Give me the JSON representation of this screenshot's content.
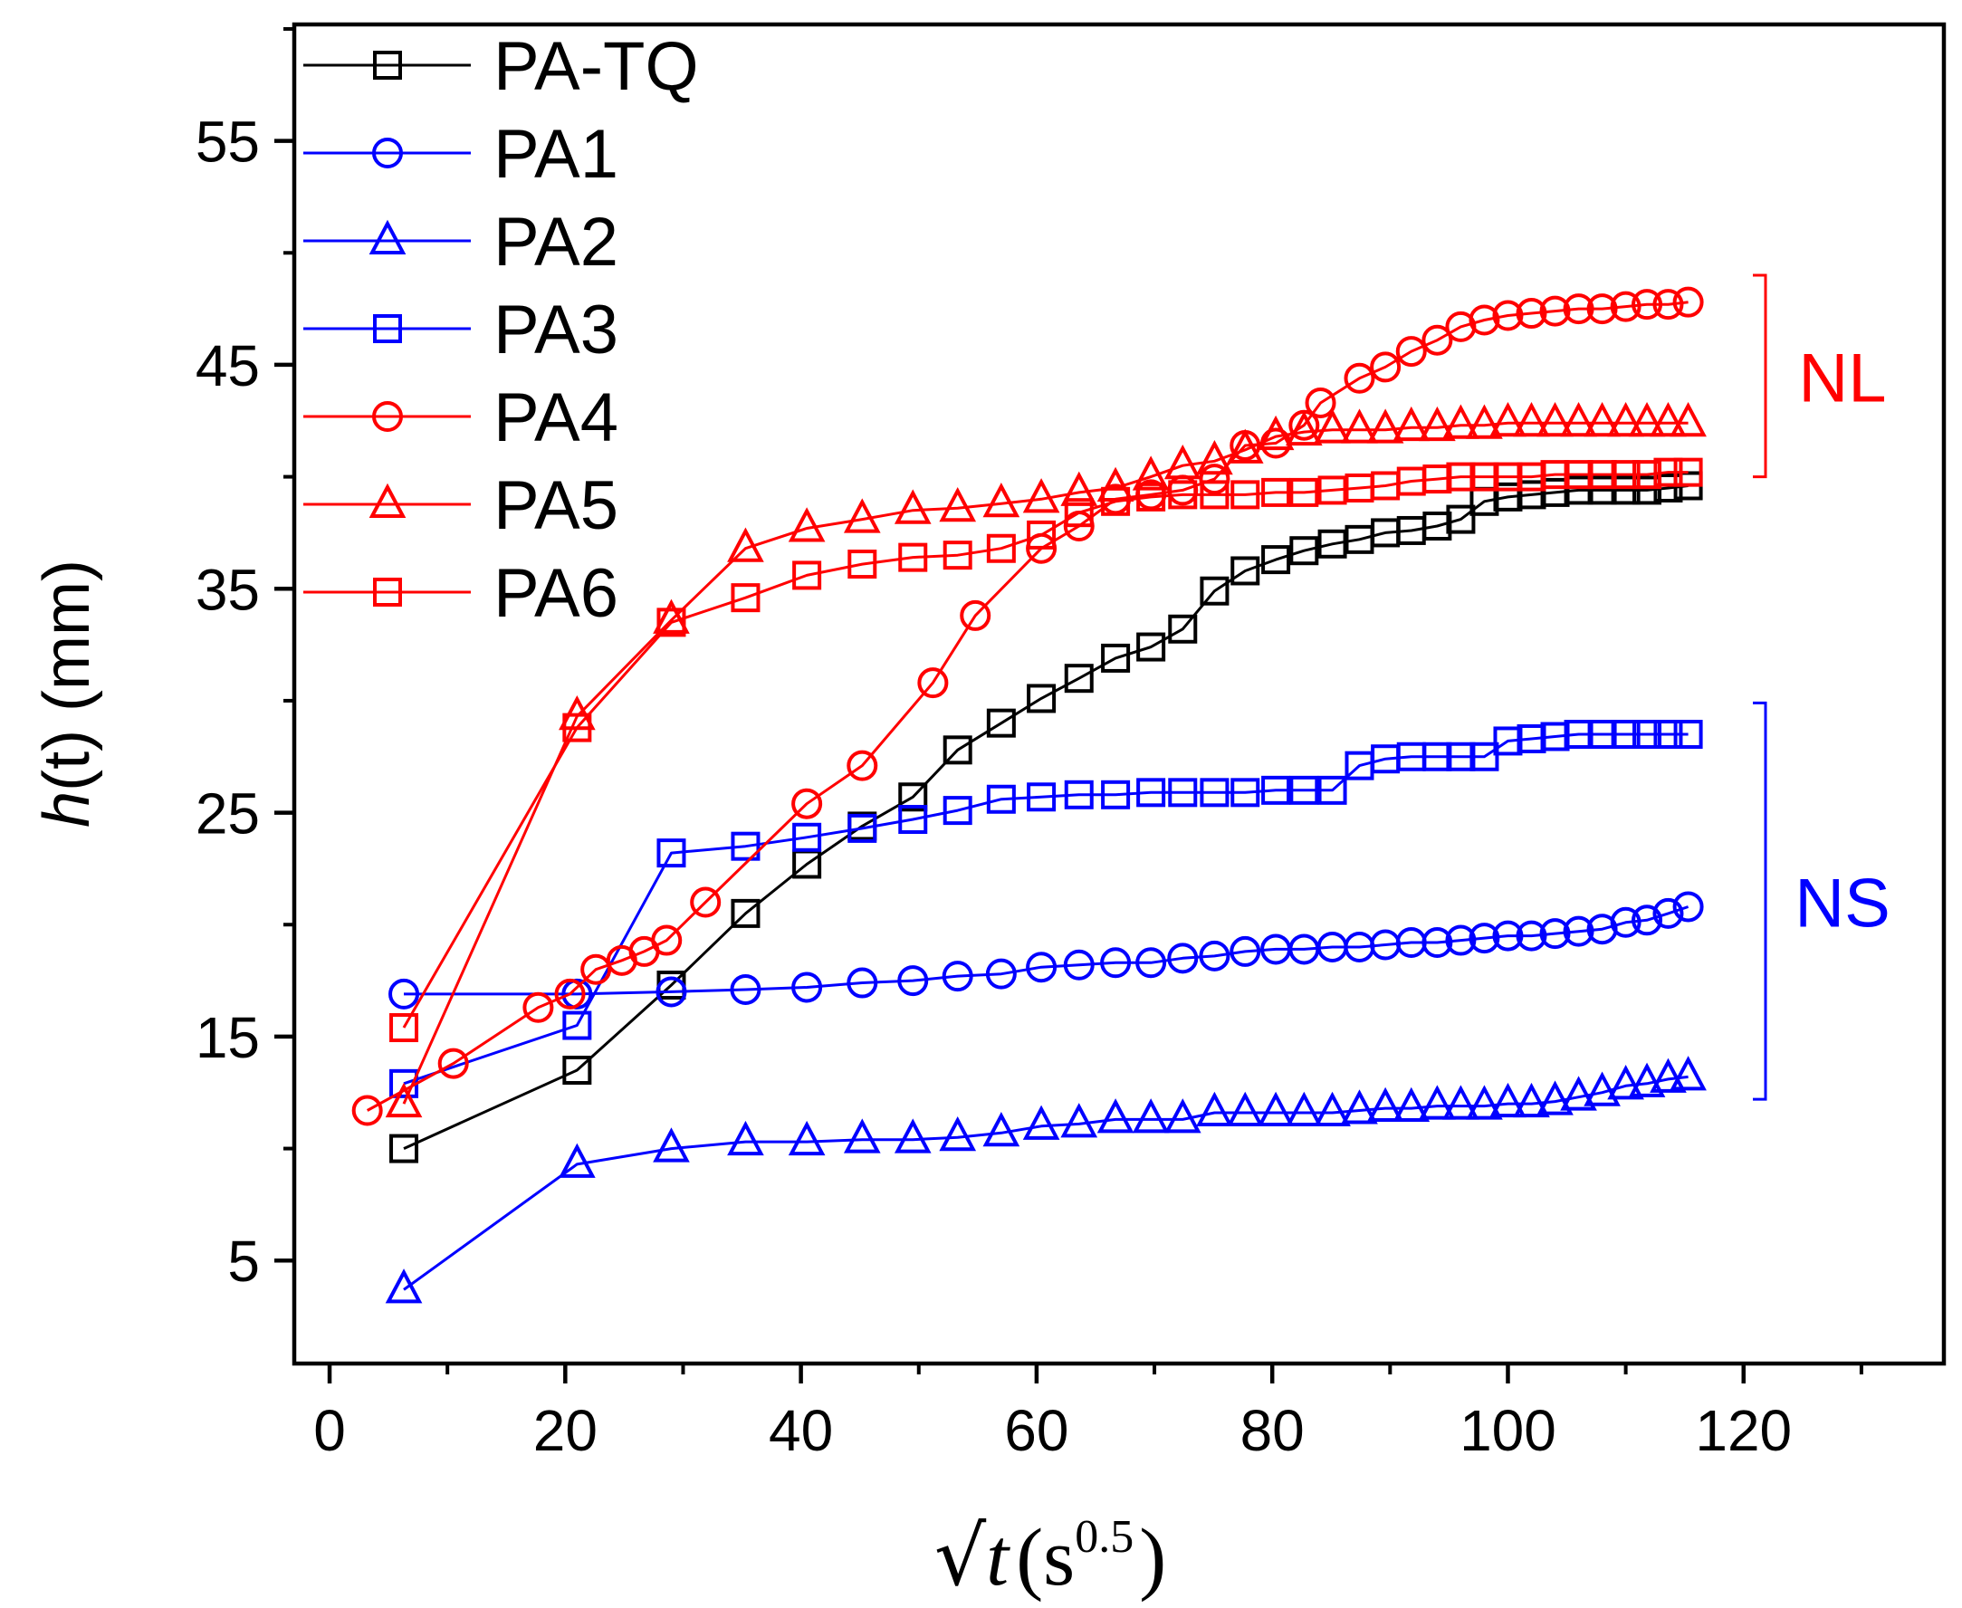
{
  "chart_data": {
    "type": "line",
    "title": "",
    "xlabel": "√t (s^0.5)",
    "xlabel_parts": {
      "sqrt": "√",
      "var": "t",
      "open": "(s",
      "sup": "0.5",
      "close": ")"
    },
    "ylabel": "h(t) (mm)",
    "ylabel_parts": {
      "var": "h",
      "rest": "(t) (mm)"
    },
    "xlim": [
      -3,
      137
    ],
    "ylim": [
      0.4,
      60.2
    ],
    "xticks": [
      0,
      20,
      40,
      60,
      80,
      100,
      120
    ],
    "xtick_labels": [
      "0",
      "20",
      "40",
      "60",
      "80",
      "100",
      "120"
    ],
    "yticks": [
      5,
      15,
      25,
      35,
      45,
      55
    ],
    "ytick_labels": [
      "5",
      "15",
      "25",
      "35",
      "45",
      "55"
    ],
    "legend_position": "top-left",
    "colors": {
      "black": "#000000",
      "blue": "#0000ff",
      "red": "#ff0000"
    },
    "series": [
      {
        "name": "PA-TQ",
        "color": "#000000",
        "marker": "square",
        "x": [
          6.3,
          21,
          29,
          35.3,
          40.5,
          45.2,
          49.5,
          53.3,
          57,
          60.4,
          63.6,
          66.7,
          69.7,
          72.4,
          75.1,
          77.7,
          80.3,
          82.7,
          85.1,
          87.4,
          89.6,
          91.8,
          94,
          96,
          98,
          100,
          102,
          104,
          106,
          108,
          110,
          111.8,
          113.6,
          115.3
        ],
        "y": [
          10,
          13.5,
          17.3,
          20.5,
          22.7,
          24.4,
          25.7,
          27.8,
          29,
          30.1,
          31,
          31.9,
          32.4,
          33.2,
          34.9,
          35.8,
          36.3,
          36.7,
          37,
          37.2,
          37.5,
          37.6,
          37.8,
          38.1,
          38.9,
          39.1,
          39.2,
          39.3,
          39.4,
          39.4,
          39.4,
          39.4,
          39.5,
          39.6
        ]
      },
      {
        "name": "PA1",
        "color": "#0000ff",
        "marker": "circle",
        "x": [
          6.3,
          21,
          29,
          35.3,
          40.5,
          45.2,
          49.5,
          53.3,
          57,
          60.4,
          63.6,
          66.7,
          69.7,
          72.4,
          75.1,
          77.7,
          80.3,
          82.7,
          85.1,
          87.4,
          89.6,
          91.8,
          94,
          96,
          98,
          100,
          102,
          104,
          106,
          108,
          110,
          111.8,
          113.6,
          115.3
        ],
        "y": [
          16.9,
          16.9,
          17,
          17.1,
          17.2,
          17.4,
          17.5,
          17.7,
          17.8,
          18.1,
          18.2,
          18.3,
          18.3,
          18.5,
          18.6,
          18.8,
          18.9,
          18.9,
          19,
          19,
          19.1,
          19.2,
          19.2,
          19.3,
          19.4,
          19.5,
          19.5,
          19.6,
          19.7,
          19.8,
          20.1,
          20.2,
          20.5,
          20.8
        ]
      },
      {
        "name": "PA2",
        "color": "#0000ff",
        "marker": "triangle",
        "x": [
          6.3,
          21,
          29,
          35.3,
          40.5,
          45.2,
          49.5,
          53.3,
          57,
          60.4,
          63.6,
          66.7,
          69.7,
          72.4,
          75.1,
          77.7,
          80.3,
          82.7,
          85.1,
          87.4,
          89.6,
          91.8,
          94,
          96,
          98,
          100,
          102,
          104,
          106,
          108,
          110,
          111.8,
          113.6,
          115.3
        ],
        "y": [
          3.7,
          9.3,
          10,
          10.3,
          10.3,
          10.4,
          10.4,
          10.5,
          10.7,
          11,
          11.1,
          11.3,
          11.3,
          11.3,
          11.6,
          11.6,
          11.6,
          11.6,
          11.6,
          11.7,
          11.8,
          11.8,
          11.9,
          11.9,
          11.9,
          12,
          12,
          12.1,
          12.3,
          12.5,
          12.8,
          12.9,
          13.1,
          13.2
        ]
      },
      {
        "name": "PA3",
        "color": "#0000ff",
        "marker": "square",
        "x": [
          6.3,
          21,
          29,
          35.3,
          40.5,
          45.2,
          49.5,
          53.3,
          57,
          60.4,
          63.6,
          66.7,
          69.7,
          72.4,
          75.1,
          77.7,
          80.3,
          82.7,
          85.1,
          87.4,
          89.6,
          91.8,
          94,
          96,
          98,
          100,
          102,
          104,
          106,
          108,
          110,
          111.8,
          113.6,
          115.3
        ],
        "y": [
          12.9,
          15.5,
          23.2,
          23.5,
          23.9,
          24.3,
          24.7,
          25.1,
          25.6,
          25.7,
          25.8,
          25.8,
          25.9,
          25.9,
          25.9,
          25.9,
          26,
          26,
          26,
          27.1,
          27.4,
          27.5,
          27.5,
          27.5,
          27.5,
          28.2,
          28.3,
          28.4,
          28.5,
          28.5,
          28.5,
          28.5,
          28.5,
          28.5
        ]
      },
      {
        "name": "PA4",
        "color": "#ff0000",
        "marker": "circle",
        "x": [
          3.2,
          10.5,
          17.7,
          20.4,
          22.6,
          24.8,
          26.7,
          28.6,
          31.9,
          40.5,
          45.2,
          51.2,
          54.8,
          60.4,
          63.6,
          66.7,
          69.7,
          72.4,
          75.1,
          77.7,
          80.3,
          82.7,
          84.1,
          87.4,
          89.6,
          91.8,
          94,
          96,
          98,
          100,
          102,
          104,
          106,
          108,
          110,
          111.8,
          113.6,
          115.3
        ],
        "y": [
          11.7,
          13.8,
          16.3,
          16.9,
          18,
          18.4,
          18.8,
          19.3,
          21,
          25.4,
          27.1,
          30.8,
          33.8,
          36.8,
          37.8,
          39,
          39.2,
          39.4,
          39.9,
          41.4,
          41.5,
          42.3,
          43.3,
          44.4,
          44.9,
          45.6,
          46.1,
          46.7,
          47,
          47.2,
          47.3,
          47.4,
          47.5,
          47.5,
          47.6,
          47.7,
          47.7,
          47.8
        ]
      },
      {
        "name": "PA5",
        "color": "#ff0000",
        "marker": "triangle",
        "x": [
          6.3,
          21,
          29,
          35.3,
          40.5,
          45.2,
          49.5,
          53.3,
          57,
          60.4,
          63.6,
          66.7,
          69.7,
          72.4,
          75.1,
          77.7,
          80.3,
          82.7,
          85.1,
          87.4,
          89.6,
          91.8,
          94,
          96,
          98,
          100,
          102,
          104,
          106,
          108,
          110,
          111.8,
          113.6,
          115.3
        ],
        "y": [
          12,
          29.3,
          33.6,
          36.8,
          37.7,
          38.1,
          38.5,
          38.6,
          38.8,
          39,
          39.3,
          39.5,
          40,
          40.5,
          40.7,
          41.2,
          41.8,
          42,
          42.1,
          42.1,
          42.1,
          42.2,
          42.2,
          42.3,
          42.3,
          42.4,
          42.4,
          42.4,
          42.4,
          42.4,
          42.4,
          42.4,
          42.4,
          42.4
        ]
      },
      {
        "name": "PA6",
        "color": "#ff0000",
        "marker": "square",
        "x": [
          6.3,
          21,
          29,
          35.3,
          40.5,
          45.2,
          49.5,
          53.3,
          57,
          60.4,
          63.6,
          66.7,
          69.7,
          72.4,
          75.1,
          77.7,
          80.3,
          82.7,
          85.1,
          87.4,
          89.6,
          91.8,
          94,
          96,
          98,
          100,
          102,
          104,
          106,
          108,
          110,
          111.8,
          113.6,
          115.3
        ],
        "y": [
          15.4,
          28.8,
          33.5,
          34.6,
          35.6,
          36.1,
          36.4,
          36.5,
          36.8,
          37.4,
          38.4,
          38.9,
          39.1,
          39.2,
          39.2,
          39.2,
          39.3,
          39.3,
          39.4,
          39.5,
          39.6,
          39.8,
          39.9,
          40,
          40,
          40,
          40,
          40.1,
          40.1,
          40.1,
          40.1,
          40.1,
          40.2,
          40.2
        ]
      }
    ],
    "annotations": [
      {
        "text": "NL",
        "color": "#ff0000",
        "y_range": [
          40,
          49
        ]
      },
      {
        "text": "NS",
        "color": "#0000ff",
        "y_range": [
          12.2,
          29.9
        ]
      }
    ]
  }
}
